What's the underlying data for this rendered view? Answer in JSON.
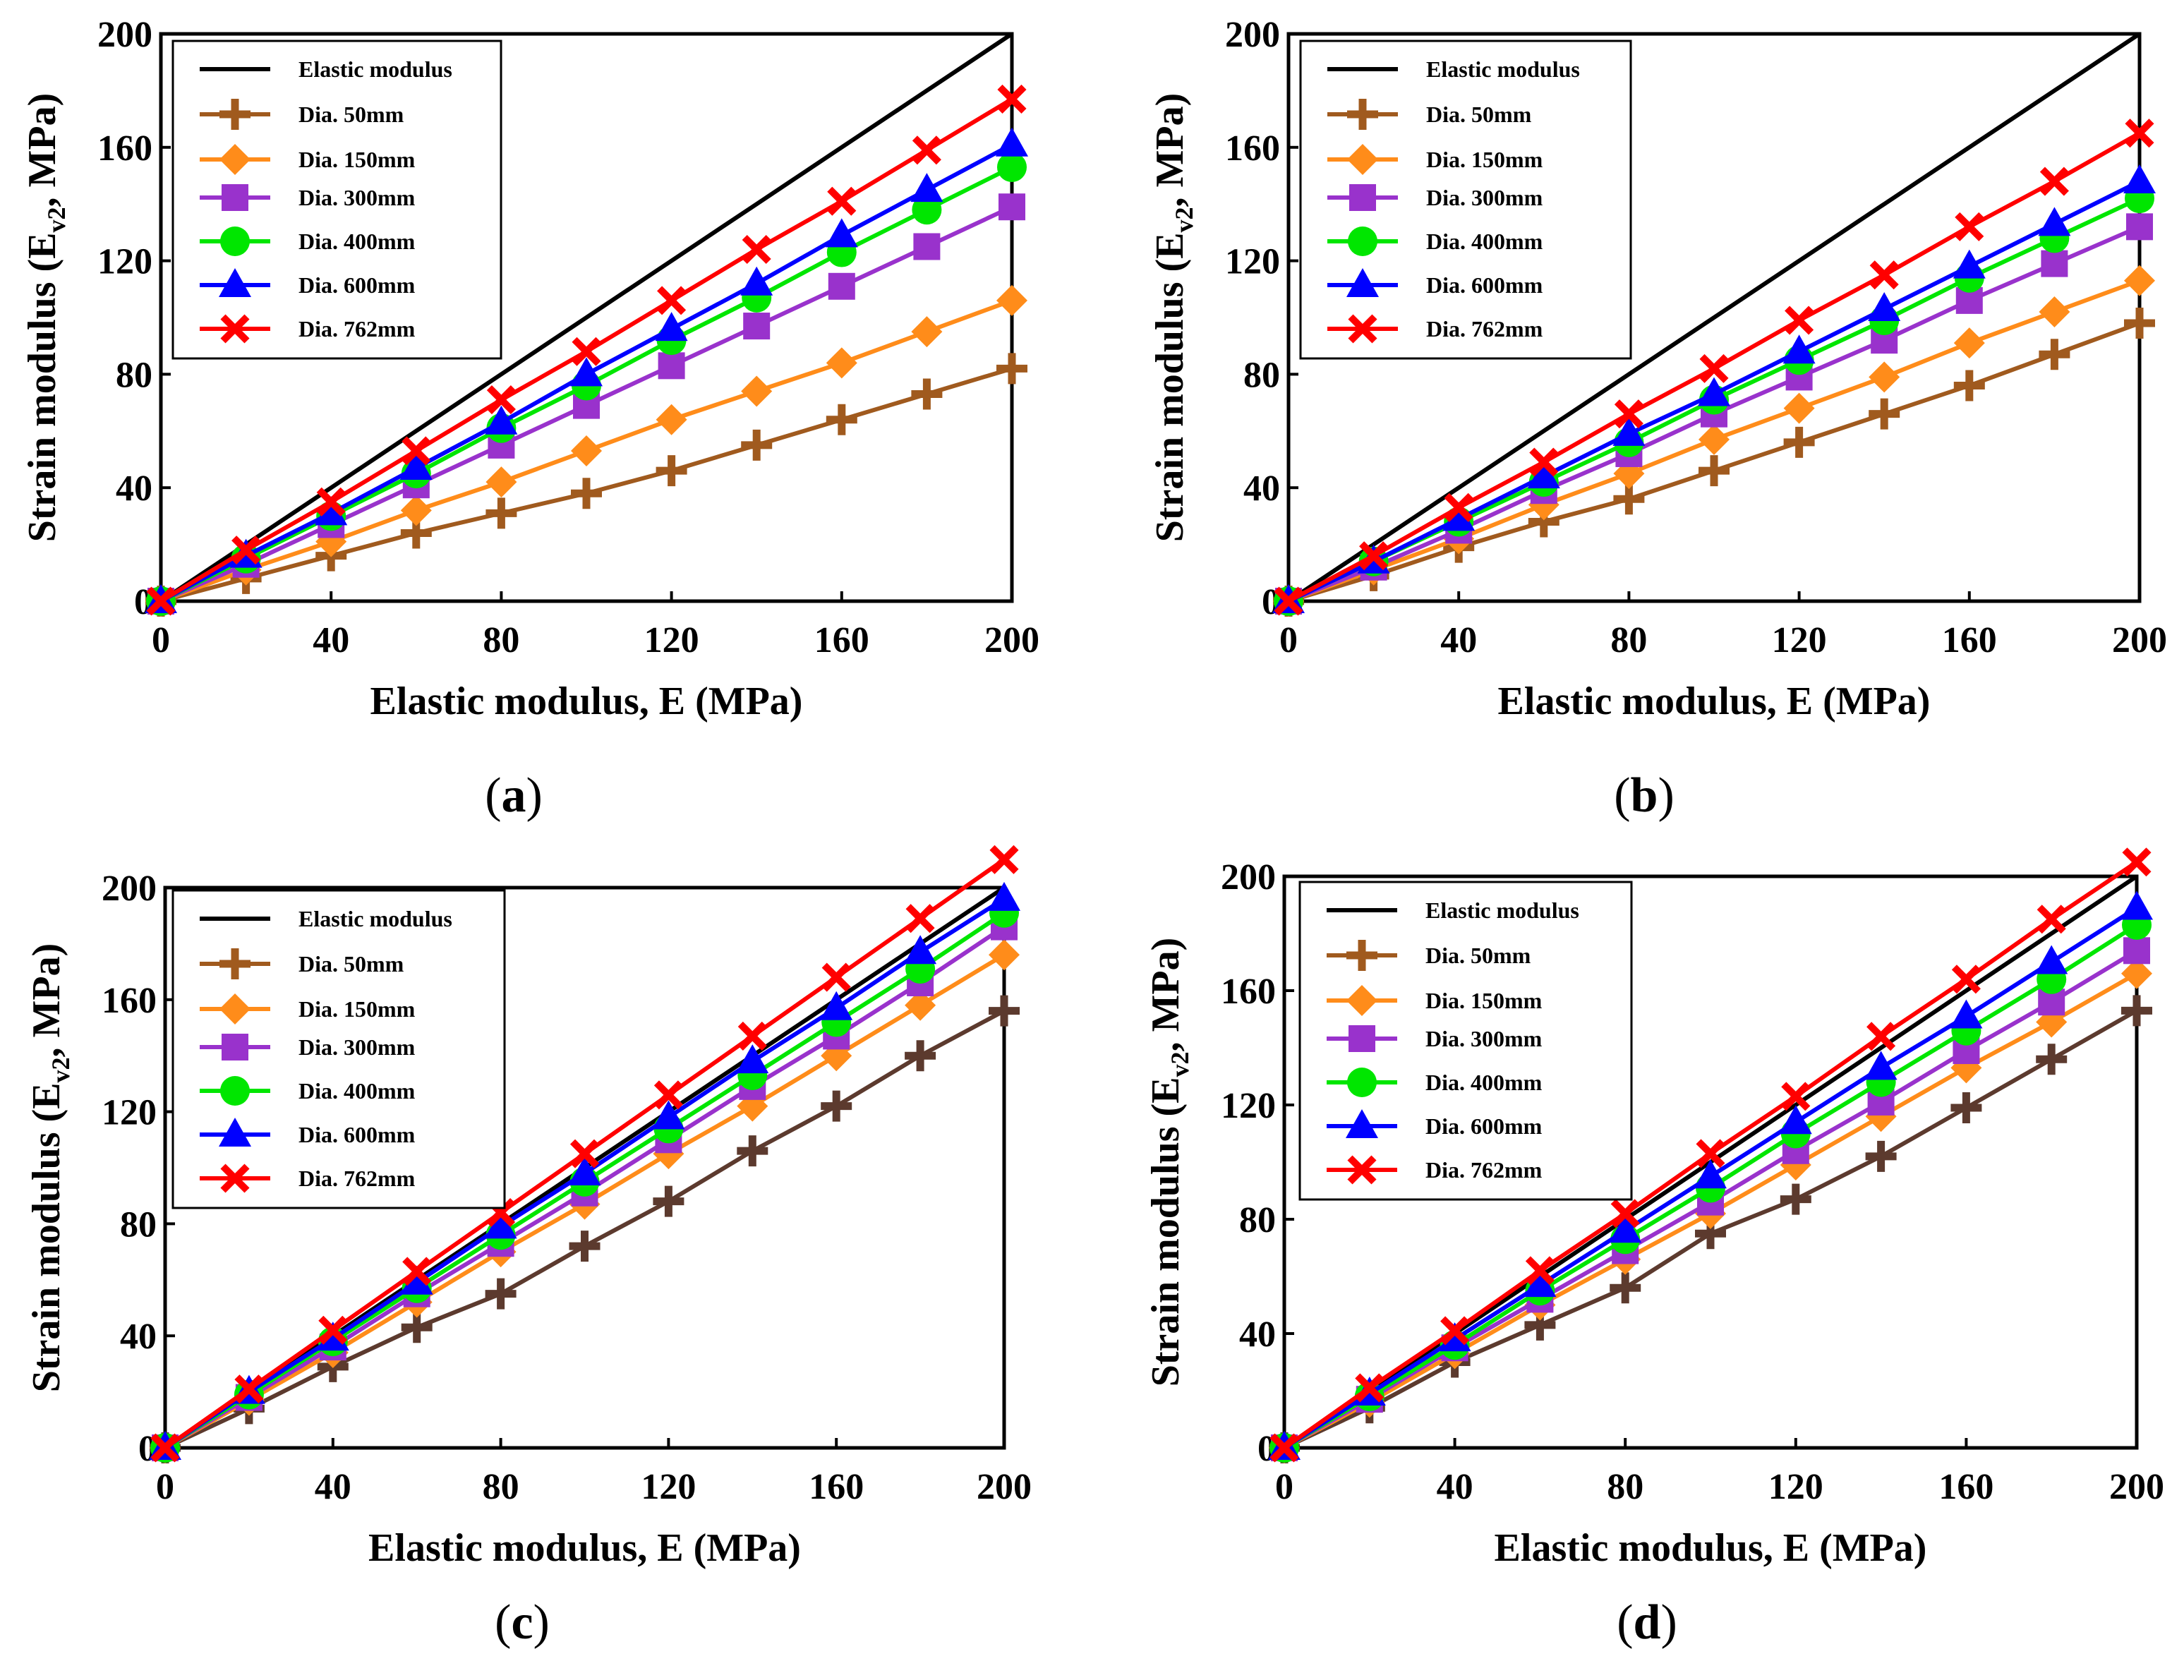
{
  "colors": {
    "elastic": "#000000",
    "dia50": "#a05a1e",
    "dia50_alt": "#5c3a2e",
    "dia150": "#ff8c1a",
    "dia300": "#9932cc",
    "dia400": "#00e600",
    "dia600": "#0000ff",
    "dia762": "#ff0000"
  },
  "chart_data": [
    {
      "type": "line",
      "caption": {
        "open": "(",
        "letter": "a",
        "close": ")"
      },
      "xlabel": "Elastic modulus, E (MPa)",
      "ylabel": "Strain modulus (E",
      "ylabel_sub": "v2",
      "ylabel_tail": ", MPa)",
      "xlim": [
        0,
        200
      ],
      "ylim": [
        0,
        200
      ],
      "xticks": [
        "0",
        "40",
        "80",
        "120",
        "160",
        "200"
      ],
      "yticks": [
        "0",
        "40",
        "80",
        "120",
        "160",
        "200"
      ],
      "x": [
        0,
        20,
        40,
        60,
        80,
        100,
        120,
        140,
        160,
        180,
        200
      ],
      "series": [
        {
          "name": "Elastic modulus",
          "key": "elastic",
          "marker": "none",
          "values": [
            0,
            20,
            40,
            60,
            80,
            100,
            120,
            140,
            160,
            180,
            200
          ]
        },
        {
          "name": "Dia. 50mm",
          "key": "dia50",
          "marker": "plus",
          "values": [
            0,
            8,
            16,
            24,
            31,
            38,
            46,
            55,
            64,
            73,
            82
          ]
        },
        {
          "name": "Dia. 150mm",
          "key": "dia150",
          "marker": "diamond",
          "values": [
            0,
            11,
            21,
            32,
            42,
            53,
            64,
            74,
            84,
            95,
            106
          ]
        },
        {
          "name": "Dia. 300mm",
          "key": "dia300",
          "marker": "square",
          "values": [
            0,
            13,
            27,
            41,
            55,
            69,
            83,
            97,
            111,
            125,
            139
          ]
        },
        {
          "name": "Dia. 400mm",
          "key": "dia400",
          "marker": "circle",
          "values": [
            0,
            15,
            30,
            45,
            61,
            76,
            92,
            107,
            123,
            138,
            153
          ]
        },
        {
          "name": "Dia. 600mm",
          "key": "dia600",
          "marker": "triangle",
          "values": [
            0,
            16,
            31,
            47,
            63,
            80,
            96,
            112,
            129,
            145,
            161
          ]
        },
        {
          "name": "Dia. 762mm",
          "key": "dia762",
          "marker": "x",
          "values": [
            0,
            18,
            35,
            53,
            71,
            88,
            106,
            124,
            141,
            159,
            177
          ]
        }
      ]
    },
    {
      "type": "line",
      "caption": {
        "open": "(",
        "letter": "b",
        "close": ")"
      },
      "xlabel": "Elastic modulus, E (MPa)",
      "ylabel": "Strain modulus (E",
      "ylabel_sub": "v2",
      "ylabel_tail": ", MPa)",
      "xlim": [
        0,
        200
      ],
      "ylim": [
        0,
        200
      ],
      "xticks": [
        "0",
        "40",
        "80",
        "120",
        "160",
        "200"
      ],
      "yticks": [
        "0",
        "40",
        "80",
        "120",
        "160",
        "200"
      ],
      "x": [
        0,
        20,
        40,
        60,
        80,
        100,
        120,
        140,
        160,
        180,
        200
      ],
      "series": [
        {
          "name": "Elastic modulus",
          "key": "elastic",
          "marker": "none",
          "values": [
            0,
            20,
            40,
            60,
            80,
            100,
            120,
            140,
            160,
            180,
            200
          ]
        },
        {
          "name": "Dia. 50mm",
          "key": "dia50",
          "marker": "plus",
          "values": [
            0,
            9,
            19,
            28,
            36,
            46,
            56,
            66,
            76,
            87,
            98
          ]
        },
        {
          "name": "Dia. 150mm",
          "key": "dia150",
          "marker": "diamond",
          "values": [
            0,
            11,
            22,
            34,
            45,
            57,
            68,
            79,
            91,
            102,
            113
          ]
        },
        {
          "name": "Dia. 300mm",
          "key": "dia300",
          "marker": "square",
          "values": [
            0,
            12,
            25,
            39,
            52,
            66,
            79,
            92,
            106,
            119,
            132
          ]
        },
        {
          "name": "Dia. 400mm",
          "key": "dia400",
          "marker": "circle",
          "values": [
            0,
            14,
            28,
            42,
            56,
            71,
            85,
            99,
            114,
            128,
            142
          ]
        },
        {
          "name": "Dia. 600mm",
          "key": "dia600",
          "marker": "triangle",
          "values": [
            0,
            14,
            29,
            44,
            59,
            73,
            88,
            103,
            118,
            133,
            148
          ]
        },
        {
          "name": "Dia. 762mm",
          "key": "dia762",
          "marker": "x",
          "values": [
            0,
            16,
            33,
            49,
            66,
            82,
            99,
            115,
            132,
            148,
            165
          ]
        }
      ]
    },
    {
      "type": "line",
      "caption": {
        "open": "(",
        "letter": "c",
        "close": ")"
      },
      "xlabel": "Elastic modulus, E (MPa)",
      "ylabel": "Strain modulus (E",
      "ylabel_sub": "v2",
      "ylabel_tail": ", MPa)",
      "xlim": [
        0,
        200
      ],
      "ylim": [
        0,
        200
      ],
      "xticks": [
        "0",
        "40",
        "80",
        "120",
        "160",
        "200"
      ],
      "yticks": [
        "0",
        "40",
        "80",
        "120",
        "160",
        "200"
      ],
      "x": [
        0,
        20,
        40,
        60,
        80,
        100,
        120,
        140,
        160,
        180,
        200
      ],
      "series": [
        {
          "name": "Elastic modulus",
          "key": "elastic",
          "marker": "none",
          "values": [
            0,
            20,
            40,
            60,
            80,
            100,
            120,
            140,
            160,
            180,
            200
          ]
        },
        {
          "name": "Dia. 50mm",
          "key": "dia50_alt",
          "legend_key": "dia50",
          "marker": "plus",
          "values": [
            0,
            14,
            29,
            43,
            55,
            72,
            88,
            106,
            122,
            140,
            156
          ]
        },
        {
          "name": "Dia. 150mm",
          "key": "dia150",
          "marker": "diamond",
          "values": [
            0,
            17,
            34,
            52,
            70,
            87,
            105,
            122,
            140,
            158,
            176
          ]
        },
        {
          "name": "Dia. 300mm",
          "key": "dia300",
          "marker": "square",
          "values": [
            0,
            18,
            36,
            55,
            73,
            91,
            110,
            129,
            147,
            166,
            186
          ]
        },
        {
          "name": "Dia. 400mm",
          "key": "dia400",
          "marker": "circle",
          "values": [
            0,
            19,
            38,
            57,
            76,
            95,
            114,
            133,
            152,
            171,
            191
          ]
        },
        {
          "name": "Dia. 600mm",
          "key": "dia600",
          "marker": "triangle",
          "values": [
            0,
            20,
            39,
            59,
            79,
            98,
            118,
            138,
            157,
            177,
            196
          ]
        },
        {
          "name": "Dia. 762mm",
          "key": "dia762",
          "marker": "x",
          "values": [
            0,
            21,
            42,
            63,
            84,
            105,
            126,
            147,
            168,
            189,
            210
          ]
        }
      ]
    },
    {
      "type": "line",
      "caption": {
        "open": "(",
        "letter": "d",
        "close": ")"
      },
      "xlabel": "Elastic modulus, E (MPa)",
      "ylabel": "Strain modulus (E",
      "ylabel_sub": "v2",
      "ylabel_tail": ", MPa)",
      "xlim": [
        0,
        200
      ],
      "ylim": [
        0,
        200
      ],
      "xticks": [
        "0",
        "40",
        "80",
        "120",
        "160",
        "200"
      ],
      "yticks": [
        "0",
        "40",
        "80",
        "120",
        "160",
        "200"
      ],
      "x": [
        0,
        20,
        40,
        60,
        80,
        100,
        120,
        140,
        160,
        180,
        200
      ],
      "series": [
        {
          "name": "Elastic modulus",
          "key": "elastic",
          "marker": "none",
          "values": [
            0,
            20,
            40,
            60,
            80,
            100,
            120,
            140,
            160,
            180,
            200
          ]
        },
        {
          "name": "Dia. 50mm",
          "key": "dia50_alt",
          "legend_key": "dia50",
          "marker": "plus",
          "values": [
            0,
            14,
            30,
            43,
            56,
            75,
            87,
            102,
            119,
            136,
            153
          ]
        },
        {
          "name": "Dia. 150mm",
          "key": "dia150",
          "marker": "diamond",
          "values": [
            0,
            16,
            33,
            50,
            66,
            82,
            99,
            116,
            133,
            149,
            166
          ]
        },
        {
          "name": "Dia. 300mm",
          "key": "dia300",
          "marker": "square",
          "values": [
            0,
            17,
            35,
            52,
            69,
            86,
            104,
            121,
            139,
            156,
            174
          ]
        },
        {
          "name": "Dia. 400mm",
          "key": "dia400",
          "marker": "circle",
          "values": [
            0,
            18,
            36,
            55,
            73,
            91,
            110,
            128,
            146,
            164,
            183
          ]
        },
        {
          "name": "Dia. 600mm",
          "key": "dia600",
          "marker": "triangle",
          "values": [
            0,
            19,
            38,
            57,
            76,
            95,
            114,
            133,
            151,
            170,
            189
          ]
        },
        {
          "name": "Dia. 762mm",
          "key": "dia762",
          "marker": "x",
          "values": [
            0,
            21,
            41,
            62,
            82,
            103,
            123,
            144,
            164,
            185,
            205
          ]
        }
      ]
    }
  ]
}
